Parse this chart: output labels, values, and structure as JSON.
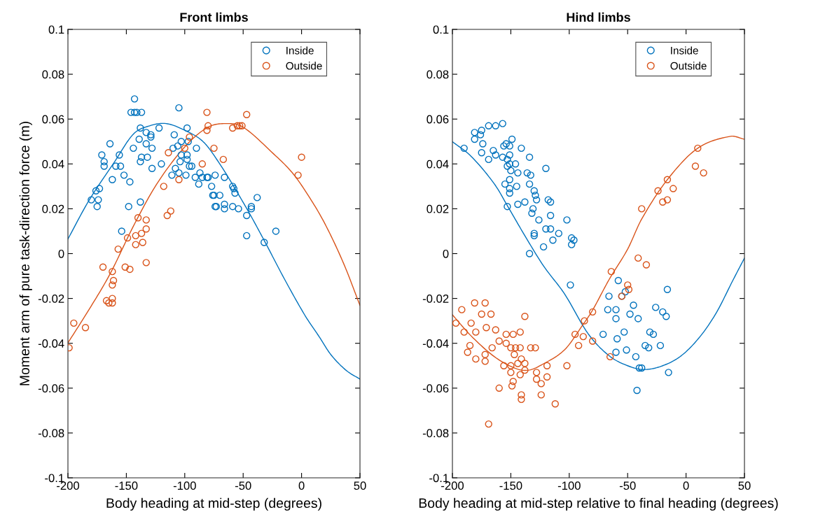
{
  "chart_data": [
    {
      "type": "scatter",
      "title": "Front limbs",
      "xlabel": "Body heading at mid-step (degrees)",
      "ylabel": "Moment arm of pure task-direction force (m)",
      "xlim": [
        -200,
        50
      ],
      "ylim": [
        -0.1,
        0.1
      ],
      "xticks": [
        -200,
        -150,
        -100,
        -50,
        0,
        50
      ],
      "yticks": [
        -0.1,
        -0.08,
        -0.06,
        -0.04,
        -0.02,
        0,
        0.02,
        0.04,
        0.06,
        0.08,
        0.1
      ],
      "legend": "top right",
      "series": [
        {
          "marker": "circle",
          "name": "Inside",
          "color": "#0072bd",
          "x": [
            -143,
            -146,
            -143,
            -141,
            -137,
            -105,
            -138,
            -122,
            -98,
            -133,
            -129,
            -129,
            -139,
            -133,
            -128,
            -144,
            -164,
            -171,
            -156,
            -169,
            -169,
            -159,
            -155,
            -137,
            -132,
            -138,
            -128,
            -120,
            -152,
            -147,
            -162,
            -173,
            -176,
            -180,
            -174,
            -175,
            -148,
            -138,
            -154,
            -109,
            -110,
            -106,
            -103,
            -97,
            -90,
            -103,
            -98,
            -98,
            -96,
            -94,
            -108,
            -104,
            -111,
            -105,
            -99,
            -91,
            -87,
            -85,
            -80,
            -74,
            -88,
            -77,
            -75,
            -74,
            -81,
            -66,
            -59,
            -58,
            -57,
            -76,
            -70,
            -38,
            -73,
            -66,
            -66,
            -59,
            -54,
            -43,
            -43,
            -47,
            -22,
            -47,
            -32
          ],
          "values": [
            0.069,
            0.063,
            0.063,
            0.063,
            0.063,
            0.065,
            0.056,
            0.056,
            0.056,
            0.054,
            0.053,
            0.052,
            0.051,
            0.049,
            0.047,
            0.047,
            0.049,
            0.044,
            0.044,
            0.041,
            0.039,
            0.039,
            0.039,
            0.043,
            0.043,
            0.041,
            0.038,
            0.04,
            0.035,
            0.032,
            0.033,
            0.029,
            0.028,
            0.024,
            0.024,
            0.021,
            0.021,
            0.023,
            0.01,
            0.053,
            0.047,
            0.048,
            0.05,
            0.05,
            0.047,
            0.044,
            0.044,
            0.042,
            0.039,
            0.039,
            0.038,
            0.041,
            0.035,
            0.036,
            0.035,
            0.034,
            0.036,
            0.034,
            0.034,
            0.035,
            0.031,
            0.03,
            0.026,
            0.021,
            0.034,
            0.034,
            0.03,
            0.029,
            0.027,
            0.026,
            0.026,
            0.025,
            0.021,
            0.022,
            0.02,
            0.021,
            0.02,
            0.021,
            0.02,
            0.017,
            0.01,
            0.008,
            0.005
          ]
        },
        {
          "marker": "circle",
          "name": "Outside",
          "color": "#d95319",
          "x": [
            -199,
            -195,
            -185,
            -170,
            -167,
            -165,
            -162,
            -162,
            -162,
            -161,
            -162,
            -157,
            -151,
            -147,
            -149,
            -142,
            -142,
            -137,
            -136,
            -133,
            -140,
            -133,
            -133,
            -118,
            -115,
            -112,
            -114,
            -105,
            -100,
            -96,
            -85,
            -81,
            -80,
            -81,
            -75,
            -67,
            -47,
            -59,
            -55,
            -53,
            -51,
            0,
            -3
          ],
          "values": [
            -0.042,
            -0.031,
            -0.033,
            -0.006,
            -0.021,
            -0.022,
            -0.02,
            -0.022,
            -0.008,
            -0.012,
            -0.014,
            0.002,
            -0.006,
            -0.007,
            0.007,
            0.008,
            0.004,
            0.009,
            0.005,
            -0.004,
            0.016,
            0.015,
            0.011,
            0.03,
            0.017,
            0.019,
            0.045,
            0.033,
            0.047,
            0.052,
            0.04,
            0.063,
            0.057,
            0.055,
            0.047,
            0.042,
            0.062,
            0.056,
            0.057,
            0.057,
            0.057,
            0.043,
            0.035
          ]
        },
        {
          "type": "line",
          "color": "#0072bd",
          "x": [
            -200,
            -182,
            -160,
            -144,
            -130,
            -116,
            -100,
            -84,
            -70,
            -57,
            -44,
            -30,
            -15,
            2.6,
            15,
            25,
            38,
            50
          ],
          "values": [
            0.0065,
            0.0237,
            0.041,
            0.0533,
            0.057,
            0.058,
            0.055,
            0.0498,
            0.04,
            0.029,
            0.0174,
            0.0039,
            -0.011,
            -0.0273,
            -0.037,
            -0.045,
            -0.052,
            -0.056
          ]
        },
        {
          "type": "line",
          "color": "#d95319",
          "x": [
            -200,
            -182,
            -164,
            -144,
            -124,
            -100,
            -80,
            -64,
            -50,
            -24,
            -8,
            6,
            20,
            36,
            50
          ],
          "values": [
            -0.0398,
            -0.025,
            -0.0091,
            0.0122,
            0.031,
            0.0476,
            0.0564,
            0.058,
            0.0564,
            0.0445,
            0.0361,
            0.0257,
            0.0133,
            -0.0044,
            -0.0231
          ]
        }
      ]
    },
    {
      "type": "scatter",
      "title": "Hind limbs",
      "xlabel": "Body heading at mid-step relative to final heading (degrees)",
      "xlim": [
        -200,
        50
      ],
      "ylim": [
        -0.1,
        0.1
      ],
      "xticks": [
        -200,
        -150,
        -100,
        -50,
        0,
        50
      ],
      "yticks": [
        -0.1,
        -0.08,
        -0.06,
        -0.04,
        -0.02,
        0,
        0.02,
        0.04,
        0.06,
        0.08,
        0.1
      ],
      "legend": "top right",
      "series": [
        {
          "marker": "circle",
          "name": "Inside",
          "color": "#0072bd",
          "x": [
            -190,
            -181,
            -175,
            -169,
            -163,
            -157,
            -176,
            -181,
            -174,
            -175,
            -169,
            -165,
            -163,
            -157,
            -154,
            -151,
            -149,
            -156,
            -141,
            -134,
            -151,
            -153,
            -146,
            -151,
            -153,
            -150,
            -144,
            -136,
            -133,
            -120,
            -151,
            -155,
            -151,
            -145,
            -151,
            -134,
            -130,
            -129,
            -128,
            -118,
            -116,
            -138,
            -144,
            -153,
            -131,
            -132,
            -126,
            -116,
            -102,
            -120,
            -116,
            -130,
            -130,
            -109,
            -114,
            -98,
            -96,
            -98,
            -122,
            -134,
            -99,
            -58,
            -66,
            -67,
            -60,
            -60,
            -71,
            -59,
            -53,
            -60,
            -51,
            -43,
            -40,
            -38,
            -42,
            -15,
            -22,
            -32,
            -35,
            -31,
            -28,
            -41,
            -48,
            -45,
            -52,
            -55,
            -26,
            -20,
            -17,
            -16
          ],
          "values": [
            0.047,
            0.054,
            0.055,
            0.057,
            0.057,
            0.058,
            0.053,
            0.051,
            0.049,
            0.045,
            0.042,
            0.046,
            0.044,
            0.043,
            0.049,
            0.048,
            0.051,
            0.048,
            0.047,
            0.043,
            0.044,
            0.042,
            0.04,
            0.04,
            0.039,
            0.037,
            0.036,
            0.036,
            0.035,
            0.038,
            0.033,
            0.031,
            0.029,
            0.03,
            0.027,
            0.031,
            0.028,
            0.026,
            0.024,
            0.024,
            0.023,
            0.023,
            0.022,
            0.021,
            0.02,
            0.018,
            0.015,
            0.017,
            0.015,
            0.011,
            0.011,
            0.009,
            0.008,
            0.009,
            0.006,
            0.007,
            0.006,
            0.004,
            0.003,
            0,
            -0.014,
            -0.012,
            -0.019,
            -0.025,
            -0.025,
            -0.029,
            -0.036,
            -0.038,
            -0.035,
            -0.044,
            -0.043,
            -0.046,
            -0.051,
            -0.051,
            -0.061,
            -0.053,
            -0.041,
            -0.042,
            -0.041,
            -0.035,
            -0.036,
            -0.029,
            -0.027,
            -0.023,
            -0.017,
            -0.019,
            -0.024,
            -0.026,
            -0.028,
            -0.016
          ]
        },
        {
          "marker": "circle",
          "name": "Outside",
          "color": "#d95319",
          "x": [
            10,
            8,
            15,
            -16,
            -11,
            -24,
            -20,
            -16,
            -38,
            -41,
            -34,
            -64,
            -50,
            -49,
            -55,
            -80,
            -80,
            -65,
            -192,
            -181,
            -172,
            -197,
            -175,
            -167,
            -184,
            -190,
            -180,
            -171,
            -185,
            -187,
            -180,
            -172,
            -172,
            -166,
            -163,
            -154,
            -148,
            -142,
            -160,
            -154,
            -150,
            -146,
            -142,
            -147,
            -141,
            -144,
            -138,
            -150,
            -156,
            -138,
            -142,
            -150,
            -148,
            -149,
            -160,
            -141,
            -141,
            -169,
            -138,
            -133,
            -129,
            -128,
            -128,
            -124,
            -119,
            -119,
            -124,
            -112,
            -102,
            -95,
            -92,
            -88,
            -87
          ],
          "values": [
            0.047,
            0.039,
            0.036,
            0.033,
            0.029,
            0.028,
            0.023,
            0.024,
            0.02,
            -0.002,
            -0.005,
            -0.008,
            -0.014,
            -0.016,
            -0.019,
            -0.026,
            -0.039,
            -0.046,
            -0.025,
            -0.022,
            -0.022,
            -0.031,
            -0.027,
            -0.027,
            -0.031,
            -0.035,
            -0.035,
            -0.033,
            -0.041,
            -0.044,
            -0.047,
            -0.045,
            -0.048,
            -0.042,
            -0.034,
            -0.036,
            -0.036,
            -0.035,
            -0.039,
            -0.04,
            -0.042,
            -0.042,
            -0.042,
            -0.045,
            -0.047,
            -0.049,
            -0.049,
            -0.05,
            -0.05,
            -0.052,
            -0.054,
            -0.053,
            -0.057,
            -0.059,
            -0.06,
            -0.063,
            -0.065,
            -0.076,
            -0.028,
            -0.042,
            -0.042,
            -0.053,
            -0.056,
            -0.058,
            -0.05,
            -0.055,
            -0.063,
            -0.067,
            -0.05,
            -0.036,
            -0.041,
            -0.037,
            -0.03
          ]
        },
        {
          "type": "line",
          "color": "#0072bd",
          "x": [
            -200,
            -184,
            -164,
            -152,
            -138,
            -122,
            -104,
            -84,
            -66,
            -50,
            -36,
            -20,
            -4,
            12,
            26,
            40,
            50
          ],
          "values": [
            0.0499,
            0.0434,
            0.031,
            0.0205,
            0.008,
            -0.0055,
            -0.018,
            -0.0356,
            -0.0455,
            -0.05,
            -0.0517,
            -0.05,
            -0.0455,
            -0.037,
            -0.0263,
            -0.012,
            -0.002
          ]
        },
        {
          "type": "line",
          "color": "#d95319",
          "x": [
            -200,
            -184,
            -164,
            -146,
            -135,
            -124,
            -104,
            -88,
            -80,
            -66,
            -50,
            -38,
            -16,
            10,
            38,
            50
          ],
          "values": [
            -0.0273,
            -0.0367,
            -0.046,
            -0.0512,
            -0.052,
            -0.0497,
            -0.0429,
            -0.0315,
            -0.0252,
            -0.0117,
            0.002,
            0.0154,
            0.033,
            0.047,
            0.0523,
            0.051
          ]
        }
      ]
    }
  ]
}
